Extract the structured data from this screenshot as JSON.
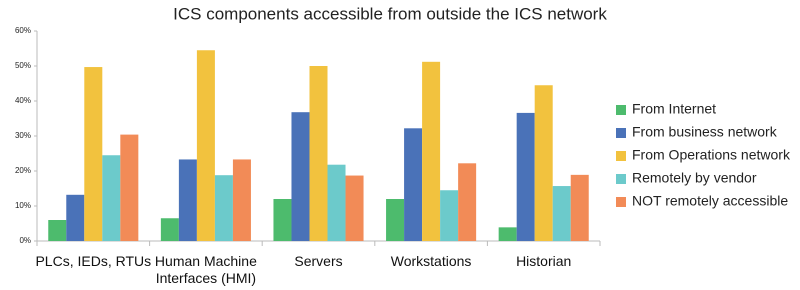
{
  "chart_data": {
    "type": "bar",
    "title": "ICS components accessible from outside the ICS network",
    "categories": [
      "PLCs, IEDs, RTUs",
      "Human Machine Interfaces (HMI)",
      "Servers",
      "Workstations",
      "Historian"
    ],
    "series": [
      {
        "name": "From Internet",
        "color": "#4dbb6d",
        "values": [
          6,
          6.5,
          12,
          12,
          3.9
        ]
      },
      {
        "name": "From business network",
        "color": "#4a72b8",
        "values": [
          13.2,
          23.3,
          36.8,
          32.2,
          36.6
        ]
      },
      {
        "name": "From Operations network",
        "color": "#f2c23e",
        "values": [
          49.7,
          54.5,
          50,
          51.2,
          44.5
        ]
      },
      {
        "name": "Remotely by vendor",
        "color": "#6ccacb",
        "values": [
          24.5,
          18.8,
          21.8,
          14.5,
          15.7
        ]
      },
      {
        "name": "NOT remotely accessible",
        "color": "#f28b57",
        "values": [
          30.4,
          23.3,
          18.7,
          22.2,
          18.9
        ]
      }
    ],
    "ylim": [
      0,
      60
    ],
    "yticks": [
      {
        "value": 0,
        "label": "0%"
      },
      {
        "value": 10,
        "label": "10%"
      },
      {
        "value": 20,
        "label": "20%"
      },
      {
        "value": 30,
        "label": "30%"
      },
      {
        "value": 40,
        "label": "40%"
      },
      {
        "value": 50,
        "label": "50%"
      },
      {
        "value": 60,
        "label": "60%"
      }
    ],
    "grid": false,
    "legend": "right"
  }
}
